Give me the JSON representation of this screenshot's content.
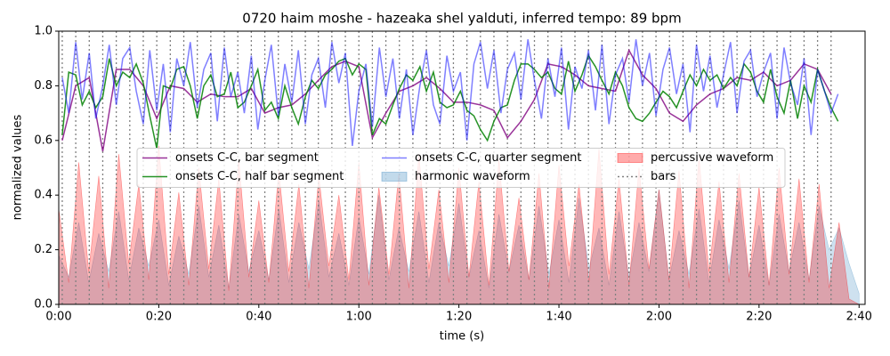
{
  "chart_data": {
    "type": "line",
    "title": "0720 haim moshe - hazeaka shel yalduti, inferred tempo: 89 bpm",
    "x_label": "time (s)",
    "y_label": "normalized values",
    "xlim": [
      0,
      161.2
    ],
    "ylim": [
      0,
      1
    ],
    "xticks": [
      {
        "value": 0,
        "label": "0:00"
      },
      {
        "value": 20,
        "label": "0:20"
      },
      {
        "value": 40,
        "label": "0:40"
      },
      {
        "value": 60,
        "label": "1:00"
      },
      {
        "value": 80,
        "label": "1:20"
      },
      {
        "value": 100,
        "label": "1:40"
      },
      {
        "value": 120,
        "label": "2:00"
      },
      {
        "value": 140,
        "label": "2:20"
      },
      {
        "value": 160,
        "label": "2:40"
      }
    ],
    "yticks": [
      {
        "value": 0,
        "label": "0.0"
      },
      0.2,
      0.4,
      0.6,
      0.8,
      {
        "value": 1,
        "label": "1.0"
      }
    ],
    "legend": "center",
    "series": [
      {
        "name": "onsets C-C, bar segment",
        "kind": "line",
        "color": "purple",
        "alpha": 0.8,
        "x": [
          0.7,
          3.4,
          6.1,
          8.8,
          11.5,
          14.2,
          16.9,
          19.6,
          22.3,
          25.0,
          27.7,
          30.4,
          33.1,
          35.8,
          38.5,
          41.2,
          43.9,
          46.6,
          49.3,
          51.9,
          54.6,
          57.3,
          60.0,
          62.7,
          65.4,
          68.1,
          70.8,
          73.5,
          76.2,
          78.9,
          81.6,
          84.3,
          87.0,
          89.7,
          92.4,
          95.1,
          97.8,
          100.5,
          103.2,
          105.9,
          108.6,
          111.3,
          114.0,
          116.7,
          119.4,
          122.1,
          124.8,
          127.5,
          130.2,
          132.9,
          135.6,
          138.3,
          140.9,
          143.6,
          146.3,
          149.0,
          151.7,
          154.4
        ],
        "values": [
          0.6,
          0.8,
          0.83,
          0.56,
          0.86,
          0.86,
          0.8,
          0.68,
          0.8,
          0.79,
          0.74,
          0.77,
          0.76,
          0.76,
          0.79,
          0.7,
          0.72,
          0.73,
          0.77,
          0.82,
          0.87,
          0.89,
          0.87,
          0.61,
          0.7,
          0.78,
          0.8,
          0.83,
          0.79,
          0.74,
          0.74,
          0.73,
          0.71,
          0.61,
          0.67,
          0.75,
          0.88,
          0.87,
          0.84,
          0.8,
          0.79,
          0.78,
          0.93,
          0.84,
          0.79,
          0.7,
          0.67,
          0.73,
          0.77,
          0.79,
          0.83,
          0.82,
          0.85,
          0.8,
          0.82,
          0.88,
          0.86,
          0.77
        ]
      },
      {
        "name": "onsets C-C, half bar segment",
        "kind": "line",
        "color": "green",
        "alpha": 0.85,
        "x": [
          0.7,
          2.0,
          3.4,
          4.7,
          6.1,
          7.4,
          8.8,
          10.1,
          11.5,
          12.8,
          14.2,
          15.5,
          16.9,
          18.2,
          19.6,
          20.9,
          22.3,
          23.6,
          25.0,
          26.3,
          27.7,
          29.0,
          30.4,
          31.7,
          33.1,
          34.4,
          35.8,
          37.1,
          38.5,
          39.8,
          41.2,
          42.5,
          43.9,
          45.2,
          46.6,
          47.9,
          49.3,
          50.6,
          51.9,
          53.3,
          54.6,
          56.0,
          57.3,
          58.7,
          60.0,
          61.4,
          62.7,
          64.1,
          65.4,
          66.8,
          68.1,
          69.5,
          70.8,
          72.2,
          73.5,
          74.9,
          76.2,
          77.6,
          78.9,
          80.3,
          81.6,
          83.0,
          84.3,
          85.7,
          87.0,
          88.4,
          89.7,
          91.1,
          92.4,
          93.8,
          95.1,
          96.5,
          97.8,
          99.2,
          100.5,
          101.9,
          103.2,
          104.6,
          105.9,
          107.3,
          108.6,
          110.0,
          111.3,
          112.7,
          114.0,
          115.4,
          116.7,
          118.1,
          119.4,
          120.8,
          122.1,
          123.5,
          124.8,
          126.2,
          127.5,
          128.9,
          130.2,
          131.6,
          132.9,
          134.3,
          135.6,
          137.0,
          138.3,
          139.6,
          140.9,
          142.3,
          143.6,
          145.0,
          146.3,
          147.7,
          149.0,
          150.4,
          151.7,
          153.1,
          154.4,
          155.8
        ],
        "values": [
          0.62,
          0.85,
          0.84,
          0.73,
          0.78,
          0.72,
          0.76,
          0.9,
          0.8,
          0.85,
          0.83,
          0.88,
          0.81,
          0.69,
          0.57,
          0.8,
          0.79,
          0.86,
          0.87,
          0.8,
          0.68,
          0.8,
          0.84,
          0.76,
          0.77,
          0.85,
          0.72,
          0.74,
          0.8,
          0.86,
          0.71,
          0.74,
          0.68,
          0.8,
          0.72,
          0.66,
          0.76,
          0.82,
          0.79,
          0.84,
          0.86,
          0.89,
          0.9,
          0.84,
          0.88,
          0.86,
          0.62,
          0.68,
          0.66,
          0.73,
          0.79,
          0.84,
          0.82,
          0.87,
          0.78,
          0.85,
          0.74,
          0.72,
          0.73,
          0.78,
          0.71,
          0.69,
          0.64,
          0.6,
          0.67,
          0.72,
          0.73,
          0.82,
          0.88,
          0.88,
          0.86,
          0.83,
          0.85,
          0.79,
          0.77,
          0.89,
          0.78,
          0.84,
          0.91,
          0.87,
          0.82,
          0.77,
          0.85,
          0.8,
          0.72,
          0.68,
          0.67,
          0.7,
          0.74,
          0.78,
          0.76,
          0.72,
          0.78,
          0.84,
          0.8,
          0.86,
          0.82,
          0.84,
          0.79,
          0.83,
          0.8,
          0.88,
          0.85,
          0.78,
          0.74,
          0.86,
          0.76,
          0.7,
          0.82,
          0.68,
          0.8,
          0.74,
          0.86,
          0.78,
          0.72,
          0.67
        ]
      },
      {
        "name": "onsets C-C, quarter segment",
        "kind": "line",
        "color": "blue",
        "alpha": 0.5,
        "x": [
          0.7,
          2.0,
          3.4,
          4.7,
          6.1,
          7.4,
          8.8,
          10.1,
          11.5,
          12.8,
          14.2,
          15.5,
          16.9,
          18.2,
          19.6,
          20.9,
          22.3,
          23.6,
          25.0,
          26.3,
          27.7,
          29.0,
          30.4,
          31.7,
          33.1,
          34.4,
          35.8,
          37.1,
          38.5,
          39.8,
          41.2,
          42.5,
          43.9,
          45.2,
          46.6,
          47.9,
          49.3,
          50.6,
          51.9,
          53.3,
          54.6,
          56.0,
          57.3,
          58.7,
          60.0,
          61.4,
          62.7,
          64.1,
          65.4,
          66.8,
          68.1,
          69.5,
          70.8,
          72.2,
          73.5,
          74.9,
          76.2,
          77.6,
          78.9,
          80.3,
          81.6,
          83.0,
          84.3,
          85.7,
          87.0,
          88.4,
          89.7,
          91.1,
          92.4,
          93.8,
          95.1,
          96.5,
          97.8,
          99.2,
          100.5,
          101.9,
          103.2,
          104.6,
          105.9,
          107.3,
          108.6,
          110.0,
          111.3,
          112.7,
          114.0,
          115.4,
          116.7,
          118.1,
          119.4,
          120.8,
          122.1,
          123.5,
          124.8,
          126.2,
          127.5,
          128.9,
          130.2,
          131.6,
          132.9,
          134.3,
          135.6,
          137.0,
          138.3,
          139.6,
          140.9,
          142.3,
          143.6,
          145.0,
          146.3,
          147.7,
          149.0,
          150.4,
          151.7,
          153.1,
          154.4,
          155.8
        ],
        "values": [
          0.83,
          0.7,
          0.96,
          0.75,
          0.92,
          0.68,
          0.8,
          0.95,
          0.73,
          0.9,
          0.94,
          0.78,
          0.66,
          0.93,
          0.71,
          0.88,
          0.63,
          0.9,
          0.8,
          0.96,
          0.72,
          0.86,
          0.92,
          0.67,
          0.94,
          0.76,
          0.85,
          0.7,
          0.91,
          0.64,
          0.82,
          0.95,
          0.69,
          0.88,
          0.74,
          0.93,
          0.66,
          0.84,
          0.9,
          0.72,
          0.96,
          0.81,
          0.92,
          0.58,
          0.78,
          0.88,
          0.65,
          0.94,
          0.76,
          0.9,
          0.68,
          0.86,
          0.62,
          0.8,
          0.93,
          0.73,
          0.66,
          0.91,
          0.78,
          0.85,
          0.6,
          0.88,
          0.96,
          0.79,
          0.93,
          0.7,
          0.86,
          0.92,
          0.75,
          0.97,
          0.82,
          0.68,
          0.9,
          0.76,
          0.94,
          0.64,
          0.87,
          0.79,
          0.93,
          0.71,
          0.95,
          0.66,
          0.84,
          0.9,
          0.74,
          0.97,
          0.8,
          0.92,
          0.69,
          0.86,
          0.94,
          0.77,
          0.88,
          0.63,
          0.95,
          0.78,
          0.91,
          0.72,
          0.84,
          0.96,
          0.7,
          0.89,
          0.93,
          0.76,
          0.85,
          0.92,
          0.68,
          0.94,
          0.81,
          0.73,
          0.9,
          0.62,
          0.86,
          0.78,
          0.7,
          0.77
        ]
      },
      {
        "name": "harmonic waveform",
        "kind": "area",
        "color": "#1f77b4",
        "alpha": 0.22,
        "x": [
          0,
          2,
          4,
          6,
          8,
          10,
          12,
          14,
          16,
          18,
          20,
          22,
          24,
          26,
          28,
          30,
          32,
          34,
          36,
          38,
          40,
          42,
          44,
          46,
          48,
          50,
          52,
          54,
          56,
          58,
          60,
          62,
          64,
          66,
          68,
          70,
          72,
          74,
          76,
          78,
          80,
          82,
          84,
          86,
          88,
          90,
          92,
          94,
          96,
          98,
          100,
          102,
          104,
          106,
          108,
          110,
          112,
          114,
          116,
          118,
          120,
          122,
          124,
          126,
          128,
          130,
          132,
          134,
          136,
          138,
          140,
          142,
          144,
          146,
          148,
          150,
          152,
          154,
          156,
          158,
          160
        ],
        "values": [
          0.18,
          0.1,
          0.3,
          0.08,
          0.26,
          0.12,
          0.34,
          0.09,
          0.28,
          0.14,
          0.31,
          0.07,
          0.25,
          0.11,
          0.36,
          0.1,
          0.29,
          0.06,
          0.33,
          0.12,
          0.27,
          0.09,
          0.35,
          0.08,
          0.3,
          0.13,
          0.38,
          0.1,
          0.26,
          0.07,
          0.32,
          0.11,
          0.4,
          0.09,
          0.28,
          0.12,
          0.34,
          0.08,
          0.3,
          0.14,
          0.37,
          0.1,
          0.27,
          0.06,
          0.33,
          0.12,
          0.29,
          0.09,
          0.36,
          0.11,
          0.31,
          0.08,
          0.39,
          0.13,
          0.28,
          0.07,
          0.34,
          0.1,
          0.3,
          0.12,
          0.42,
          0.09,
          0.27,
          0.11,
          0.35,
          0.08,
          0.31,
          0.13,
          0.38,
          0.1,
          0.29,
          0.07,
          0.33,
          0.12,
          0.3,
          0.09,
          0.36,
          0.2,
          0.28,
          0.15,
          0.04
        ]
      },
      {
        "name": "percussive waveform",
        "kind": "area",
        "color": "red",
        "alpha": 0.28,
        "x": [
          0,
          2,
          4,
          6,
          8,
          10,
          12,
          14,
          16,
          18,
          20,
          22,
          24,
          26,
          28,
          30,
          32,
          34,
          36,
          38,
          40,
          42,
          44,
          46,
          48,
          50,
          52,
          54,
          56,
          58,
          60,
          62,
          64,
          66,
          68,
          70,
          72,
          74,
          76,
          78,
          80,
          82,
          84,
          86,
          88,
          90,
          92,
          94,
          96,
          98,
          100,
          102,
          104,
          106,
          108,
          110,
          112,
          114,
          116,
          118,
          120,
          122,
          124,
          126,
          128,
          130,
          132,
          134,
          136,
          138,
          140,
          142,
          144,
          146,
          148,
          150,
          152,
          154,
          156,
          158,
          160
        ],
        "values": [
          0.35,
          0.08,
          0.52,
          0.12,
          0.47,
          0.06,
          0.55,
          0.15,
          0.44,
          0.09,
          0.58,
          0.11,
          0.41,
          0.07,
          0.5,
          0.13,
          0.46,
          0.05,
          0.53,
          0.1,
          0.38,
          0.08,
          0.49,
          0.12,
          0.44,
          0.06,
          0.47,
          0.14,
          0.4,
          0.09,
          0.52,
          0.07,
          0.43,
          0.11,
          0.48,
          0.06,
          0.55,
          0.13,
          0.42,
          0.08,
          0.5,
          0.1,
          0.45,
          0.07,
          0.53,
          0.12,
          0.39,
          0.09,
          0.48,
          0.06,
          0.51,
          0.14,
          0.44,
          0.08,
          0.57,
          0.11,
          0.46,
          0.07,
          0.5,
          0.13,
          0.42,
          0.09,
          0.49,
          0.06,
          0.54,
          0.12,
          0.45,
          0.08,
          0.48,
          0.1,
          0.43,
          0.07,
          0.5,
          0.11,
          0.46,
          0.08,
          0.44,
          0.06,
          0.3,
          0.02,
          0.0
        ]
      },
      {
        "name": "bars",
        "kind": "vlines",
        "color": "gray",
        "alpha": 1,
        "dash": "dotted",
        "x": [
          0.7,
          3.4,
          6.1,
          8.8,
          11.5,
          14.2,
          16.9,
          19.6,
          22.3,
          25.0,
          27.7,
          30.4,
          33.1,
          35.8,
          38.5,
          41.2,
          43.9,
          46.6,
          49.3,
          51.9,
          54.6,
          57.3,
          60.0,
          62.7,
          65.4,
          68.1,
          70.8,
          73.5,
          76.2,
          78.9,
          81.6,
          84.3,
          87.0,
          89.7,
          92.4,
          95.1,
          97.8,
          100.5,
          103.2,
          105.9,
          108.6,
          111.3,
          114.0,
          116.7,
          119.4,
          122.1,
          124.8,
          127.5,
          130.2,
          132.9,
          135.6,
          138.3,
          140.9,
          143.6,
          146.3,
          149.0,
          151.7,
          154.4
        ]
      }
    ]
  }
}
